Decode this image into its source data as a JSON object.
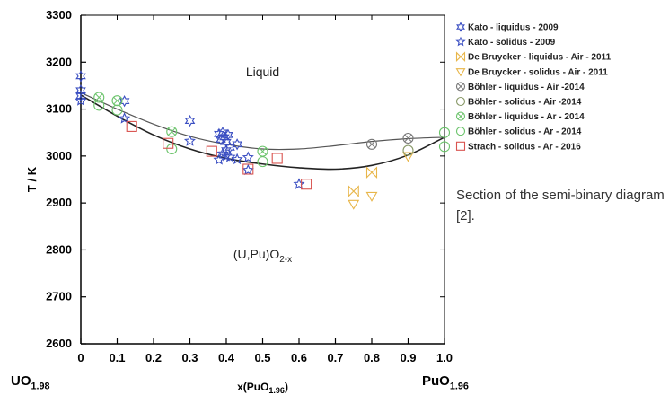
{
  "chart_data": {
    "type": "scatter",
    "ylabel": "T / K",
    "xlabel": "x(PuO1.96)",
    "xlim": [
      0,
      1.0
    ],
    "ylim": [
      2600,
      3300
    ],
    "x_ticks": [
      "0",
      "0.1",
      "0.2",
      "0.3",
      "0.4",
      "0.5",
      "0.6",
      "0.7",
      "0.8",
      "0.9",
      "1.0"
    ],
    "y_ticks": [
      "2600",
      "2700",
      "2800",
      "2900",
      "3000",
      "3100",
      "3200",
      "3300"
    ],
    "x_end_labels": {
      "left": "UO1.98",
      "right": "PuO1.96"
    },
    "grid": false,
    "legend_position": "right",
    "annotations": {
      "liquid": "Liquid",
      "solid_phase": "(U,Pu)O2-x"
    },
    "curves": [
      {
        "role": "liquidus-fit",
        "points": [
          [
            0,
            3135
          ],
          [
            0.1,
            3100
          ],
          [
            0.2,
            3068
          ],
          [
            0.3,
            3042
          ],
          [
            0.4,
            3025
          ],
          [
            0.5,
            3015
          ],
          [
            0.6,
            3015
          ],
          [
            0.7,
            3022
          ],
          [
            0.8,
            3031
          ],
          [
            0.9,
            3037
          ],
          [
            1.0,
            3040
          ]
        ]
      },
      {
        "role": "solidus-fit",
        "points": [
          [
            0,
            3130
          ],
          [
            0.1,
            3085
          ],
          [
            0.2,
            3045
          ],
          [
            0.3,
            3015
          ],
          [
            0.4,
            2995
          ],
          [
            0.5,
            2983
          ],
          [
            0.6,
            2975
          ],
          [
            0.7,
            2972
          ],
          [
            0.8,
            2980
          ],
          [
            0.9,
            3002
          ],
          [
            1.0,
            3040
          ]
        ]
      }
    ],
    "series": [
      {
        "name": "Kato - liquidus - 2009",
        "marker": "star6",
        "color": "#3a4ec2",
        "points": [
          [
            0,
            3170
          ],
          [
            0,
            3140
          ],
          [
            0,
            3128
          ],
          [
            0.12,
            3117
          ],
          [
            0.3,
            3075
          ],
          [
            0.38,
            3047
          ],
          [
            0.385,
            3035
          ],
          [
            0.39,
            3050
          ],
          [
            0.395,
            3040
          ],
          [
            0.4,
            3030
          ],
          [
            0.405,
            3045
          ],
          [
            0.41,
            3018
          ],
          [
            0.4,
            3012
          ],
          [
            0.43,
            3025
          ]
        ]
      },
      {
        "name": "Kato - solidus - 2009",
        "marker": "star",
        "color": "#3a4ec2",
        "points": [
          [
            0,
            3118
          ],
          [
            0.12,
            3080
          ],
          [
            0.3,
            3032
          ],
          [
            0.38,
            2992
          ],
          [
            0.39,
            3005
          ],
          [
            0.4,
            3000
          ],
          [
            0.41,
            2998
          ],
          [
            0.43,
            2993
          ],
          [
            0.46,
            2997
          ],
          [
            0.46,
            2970
          ],
          [
            0.6,
            2940
          ]
        ]
      },
      {
        "name": "De Bruycker - liquidus - Air - 2011",
        "marker": "bowtie",
        "color": "#e8b64a",
        "points": [
          [
            0.75,
            2925
          ],
          [
            0.8,
            2965
          ]
        ]
      },
      {
        "name": "De Bruycker - solidus - Air - 2011",
        "marker": "triangle-down",
        "color": "#e8b64a",
        "points": [
          [
            0.75,
            2898
          ],
          [
            0.8,
            2915
          ],
          [
            0.9,
            3000
          ]
        ]
      },
      {
        "name": "Böhler - liquidus - Air -2014",
        "marker": "circle-x",
        "color": "#777777",
        "points": [
          [
            0.8,
            3025
          ],
          [
            0.9,
            3038
          ]
        ]
      },
      {
        "name": "Böhler - solidus - Air -2014",
        "marker": "circle",
        "color": "#8a9a6a",
        "points": [
          [
            0.9,
            3012
          ]
        ]
      },
      {
        "name": "Böhler - liquidus - Ar - 2014",
        "marker": "circle-x",
        "color": "#6cc46c",
        "points": [
          [
            0.05,
            3125
          ],
          [
            0.1,
            3118
          ],
          [
            0.25,
            3052
          ],
          [
            0.5,
            3010
          ]
        ]
      },
      {
        "name": "Böhler - solidus - Ar - 2014",
        "marker": "circle",
        "color": "#6cc46c",
        "points": [
          [
            0.05,
            3108
          ],
          [
            0.1,
            3098
          ],
          [
            0.25,
            3015
          ],
          [
            0.5,
            2988
          ],
          [
            1.0,
            3050
          ],
          [
            1.0,
            3020
          ]
        ]
      },
      {
        "name": "Strach - solidus - Ar - 2016",
        "marker": "square",
        "color": "#d9534f",
        "points": [
          [
            0.14,
            3063
          ],
          [
            0.24,
            3027
          ],
          [
            0.36,
            3010
          ],
          [
            0.46,
            2972
          ],
          [
            0.54,
            2995
          ],
          [
            0.62,
            2940
          ]
        ]
      }
    ]
  },
  "caption": "Section of the semi-binary diagram [2]."
}
